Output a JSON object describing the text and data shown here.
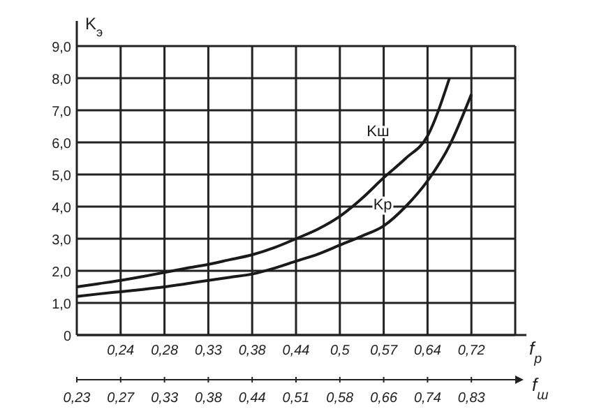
{
  "chart_data": {
    "type": "line",
    "ylabel": "K$_{э}$",
    "xlabel": "f$_{р}$",
    "x2label": "f$_{ш}$",
    "categories": [
      null,
      null,
      "0,24",
      null,
      "0,28",
      null,
      "0,33",
      null,
      "0,38",
      null,
      "0,44",
      null,
      "0,5",
      null,
      "0,57",
      null,
      "0,64",
      null,
      "0,72",
      null,
      null
    ],
    "annotations": [
      "0,23",
      "0,27",
      "0,33",
      "0,38",
      "0,44",
      "0,51",
      "0,58",
      "0,66",
      "0,74",
      "0,83"
    ],
    "ylim": [
      0,
      9
    ],
    "yticks": [
      {
        "value": 0,
        "label": "0"
      },
      {
        "value": 1,
        "label": "1,0"
      },
      {
        "value": 2,
        "label": "2,0"
      },
      {
        "value": 3,
        "label": "3,0"
      },
      {
        "value": 4,
        "label": "4,0"
      },
      {
        "value": 5,
        "label": "5,0"
      },
      {
        "value": 6,
        "label": "6,0"
      },
      {
        "value": 7,
        "label": "7,0"
      },
      {
        "value": 8,
        "label": "8,0"
      },
      {
        "value": 9,
        "label": "9,0"
      }
    ],
    "grid": true,
    "marker": "none",
    "line_style": "solid",
    "series": [
      {
        "name": "Kш",
        "color": "#1a1a1a",
        "values": [
          1.5,
          1.6,
          1.7,
          1.82,
          1.95,
          2.08,
          2.2,
          2.35,
          2.5,
          2.72,
          3.0,
          3.3,
          3.7,
          4.25,
          4.9,
          5.5,
          6.2,
          8.0,
          null,
          null,
          null
        ]
      },
      {
        "name": "Kр",
        "color": "#1a1a1a",
        "values": [
          1.2,
          1.28,
          1.35,
          1.42,
          1.5,
          1.6,
          1.7,
          1.8,
          1.9,
          2.08,
          2.3,
          2.52,
          2.8,
          3.08,
          3.4,
          4.0,
          4.8,
          5.9,
          7.5,
          null,
          null
        ]
      }
    ]
  }
}
